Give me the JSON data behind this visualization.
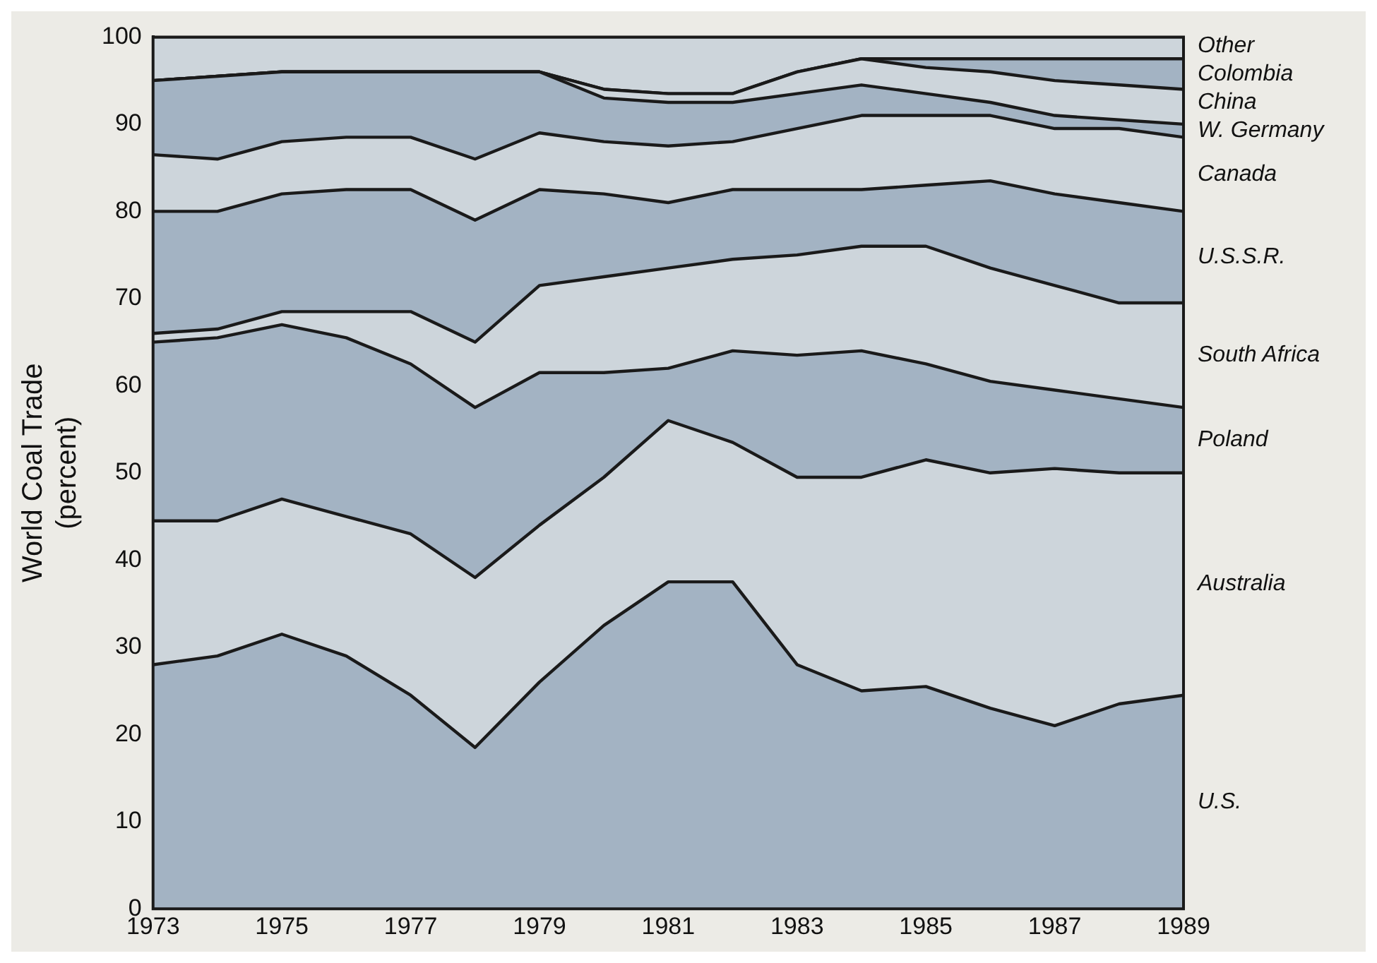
{
  "chart_data": {
    "type": "area",
    "stacked": true,
    "ylabel": "World Coal Trade\n(percent)",
    "x": [
      1973,
      1974,
      1975,
      1976,
      1977,
      1978,
      1979,
      1980,
      1981,
      1982,
      1983,
      1984,
      1985,
      1986,
      1987,
      1988,
      1989
    ],
    "xlim": [
      1973,
      1989
    ],
    "xticks": [
      1973,
      1975,
      1977,
      1979,
      1981,
      1983,
      1985,
      1987,
      1989
    ],
    "ylim": [
      0,
      100
    ],
    "yticks": [
      0,
      10,
      20,
      30,
      40,
      50,
      60,
      70,
      80,
      90,
      100
    ],
    "series": [
      {
        "name": "U.S.",
        "color": "#a3b3c3",
        "values": [
          28,
          29,
          31.5,
          29,
          24.5,
          18.5,
          26,
          32.5,
          37.5,
          37.5,
          28,
          25,
          25.5,
          23,
          21,
          23.5,
          24.5
        ]
      },
      {
        "name": "Australia",
        "color": "#cdd5db",
        "values": [
          16.5,
          15.5,
          15.5,
          16,
          18.5,
          19.5,
          18,
          17,
          18.5,
          16,
          21.5,
          24.5,
          26,
          27,
          29.5,
          26.5,
          25.5
        ]
      },
      {
        "name": "Poland",
        "color": "#a3b3c3",
        "values": [
          20.5,
          21,
          20,
          20.5,
          19.5,
          19.5,
          17.5,
          12,
          6,
          10.5,
          14,
          14.5,
          11,
          10.5,
          9,
          8.5,
          7.5
        ]
      },
      {
        "name": "South Africa",
        "color": "#cdd5db",
        "values": [
          1,
          1,
          1.5,
          3,
          6,
          7.5,
          10,
          11,
          11.5,
          10.5,
          11.5,
          12,
          13.5,
          13,
          12,
          11,
          12
        ]
      },
      {
        "name": "U.S.S.R.",
        "color": "#a3b3c3",
        "values": [
          14,
          13.5,
          13.5,
          14,
          14,
          14,
          11,
          9.5,
          7.5,
          8,
          7.5,
          6.5,
          7,
          10,
          10.5,
          11.5,
          10.5
        ]
      },
      {
        "name": "Canada",
        "color": "#cdd5db",
        "values": [
          6.5,
          6,
          6,
          6,
          6,
          7,
          6.5,
          6,
          6.5,
          5.5,
          7,
          8.5,
          8,
          7.5,
          7.5,
          8.5,
          8.5
        ]
      },
      {
        "name": "W. Germany",
        "color": "#a3b3c3",
        "values": [
          8.5,
          9.5,
          8,
          7.5,
          7.5,
          10,
          7,
          5,
          5,
          4.5,
          4,
          3.5,
          2.5,
          1.5,
          1.5,
          1,
          1.5
        ]
      },
      {
        "name": "China",
        "color": "#cdd5db",
        "values": [
          0,
          0,
          0,
          0,
          0,
          0,
          0,
          1,
          1,
          1,
          2.5,
          3,
          3,
          3.5,
          4,
          4,
          4
        ]
      },
      {
        "name": "Colombia",
        "color": "#a3b3c3",
        "values": [
          0,
          0,
          0,
          0,
          0,
          0,
          0,
          0,
          0,
          0,
          0,
          0,
          1,
          1.5,
          2.5,
          3,
          3.5
        ]
      },
      {
        "name": "Other",
        "color": "#cdd5db",
        "values": [
          5,
          4.5,
          4,
          4,
          4,
          4,
          4,
          6,
          6.5,
          6.5,
          4,
          2.5,
          2.5,
          2.5,
          2.5,
          2.5,
          2.5
        ]
      }
    ]
  }
}
